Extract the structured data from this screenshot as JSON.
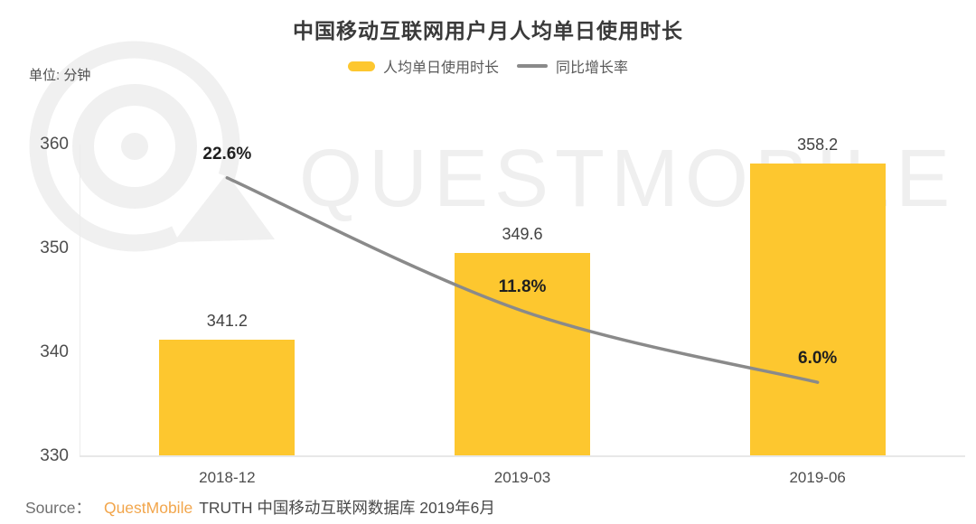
{
  "header": {
    "title": "中国移动互联网用户月人均单日使用时长",
    "unit_label": "单位: 分钟"
  },
  "legend": [
    {
      "label": "人均单日使用时长",
      "swatch": "bar-swatch",
      "color": "#FDC72F"
    },
    {
      "label": "同比增长率",
      "swatch": "line-swatch",
      "color": "#8A8A8A"
    }
  ],
  "watermark": {
    "text": "QUESTMOBILE",
    "color": "#efefef"
  },
  "footer": {
    "source_label": "Source：",
    "brand": "QuestMobile",
    "brand_color": "#F2A64C",
    "text": "TRUTH 中国移动互联网数据库 2019年6月"
  },
  "chart_data": {
    "type": "bar",
    "categories": [
      "2018-12",
      "2019-03",
      "2019-06"
    ],
    "series": [
      {
        "name": "人均单日使用时长",
        "type": "bar",
        "values": [
          341.2,
          349.6,
          358.2
        ],
        "labels": [
          "341.2",
          "349.6",
          "358.2"
        ],
        "color": "#FDC72F"
      },
      {
        "name": "同比增长率",
        "type": "line",
        "values": [
          22.6,
          11.8,
          6.0
        ],
        "labels": [
          "22.6%",
          "11.8%",
          "6.0%"
        ],
        "color": "#8A8A8A"
      }
    ],
    "title": "中国移动互联网用户月人均单日使用时长",
    "xlabel": "",
    "ylabel": "单位: 分钟",
    "ylim": [
      330,
      360
    ],
    "yticks": [
      330,
      340,
      350,
      360
    ],
    "y2lim": [
      0,
      25.3
    ],
    "grid": false,
    "legend_position": "top"
  }
}
